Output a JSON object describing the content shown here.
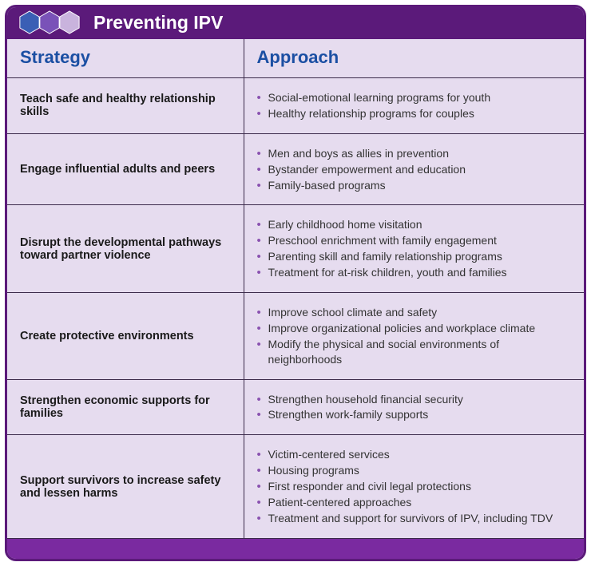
{
  "title": "Preventing IPV",
  "hex_colors": [
    "#3a5fb5",
    "#7a52b8",
    "#c9b3dd"
  ],
  "columns": [
    "Strategy",
    "Approach"
  ],
  "colors": {
    "card_border": "#5b1a7a",
    "header_bg": "#5b1a7a",
    "body_bg": "#e6dcef",
    "col_header_text": "#1b4fa3",
    "grid_line": "#3b2a4a",
    "bullet": "#8a52b0",
    "footer_bg": "#7a2aa0"
  },
  "rows": [
    {
      "strategy": "Teach safe and healthy relationship skills",
      "approaches": [
        "Social-emotional learning programs for youth",
        "Healthy relationship programs for couples"
      ]
    },
    {
      "strategy": "Engage influential adults and peers",
      "approaches": [
        "Men and boys as allies in prevention",
        "Bystander empowerment and education",
        "Family-based programs"
      ]
    },
    {
      "strategy": "Disrupt the developmental pathways toward partner violence",
      "approaches": [
        "Early childhood home visitation",
        "Preschool enrichment with family engagement",
        "Parenting skill and family relationship programs",
        "Treatment for at-risk children, youth and families"
      ]
    },
    {
      "strategy": "Create protective environments",
      "approaches": [
        "Improve school climate and safety",
        "Improve organizational policies and workplace climate",
        "Modify the physical and social environments of neighborhoods"
      ]
    },
    {
      "strategy": "Strengthen economic supports for families",
      "approaches": [
        "Strengthen household financial security",
        "Strengthen work-family supports"
      ]
    },
    {
      "strategy": "Support survivors to increase safety and lessen harms",
      "approaches": [
        "Victim-centered services",
        "Housing programs",
        "First responder and civil legal protections",
        "Patient-centered approaches",
        "Treatment and support for survivors of IPV, including TDV"
      ]
    }
  ]
}
